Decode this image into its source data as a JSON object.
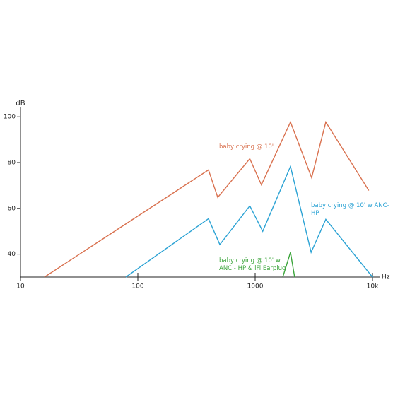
{
  "chart_data": {
    "type": "line",
    "log_x": true,
    "xlabel": "Hz",
    "ylabel": "dB",
    "xlim": [
      10,
      10000
    ],
    "ylim": [
      30,
      103
    ],
    "xticks": [
      10,
      100,
      1000,
      {
        "value": 10000,
        "label": "10k"
      }
    ],
    "yticks": [
      40,
      60,
      80,
      100
    ],
    "series": [
      {
        "name": "baby crying  @ 10'",
        "color": "#d9714f",
        "x": [
          16,
          400,
          480,
          900,
          1130,
          2000,
          3030,
          4000,
          9300
        ],
        "values": [
          30,
          76.8,
          64.8,
          81.7,
          70.3,
          97.7,
          73.4,
          97.7,
          67.8
        ]
      },
      {
        "name": "baby crying  @ 10' w ANC-HP",
        "color": "#2aa2d4",
        "x": [
          79,
          400,
          500,
          900,
          1160,
          2000,
          3000,
          4000,
          10000
        ],
        "values": [
          30,
          55.5,
          44.2,
          61.1,
          50,
          78.3,
          40.8,
          55.2,
          30
        ]
      },
      {
        "name": "baby crying  @ 10' w ANC - HP  & iFi Earplug",
        "color": "#3ba53b",
        "x": [
          1720,
          2000,
          2170
        ],
        "values": [
          30,
          40.8,
          30
        ]
      }
    ]
  }
}
